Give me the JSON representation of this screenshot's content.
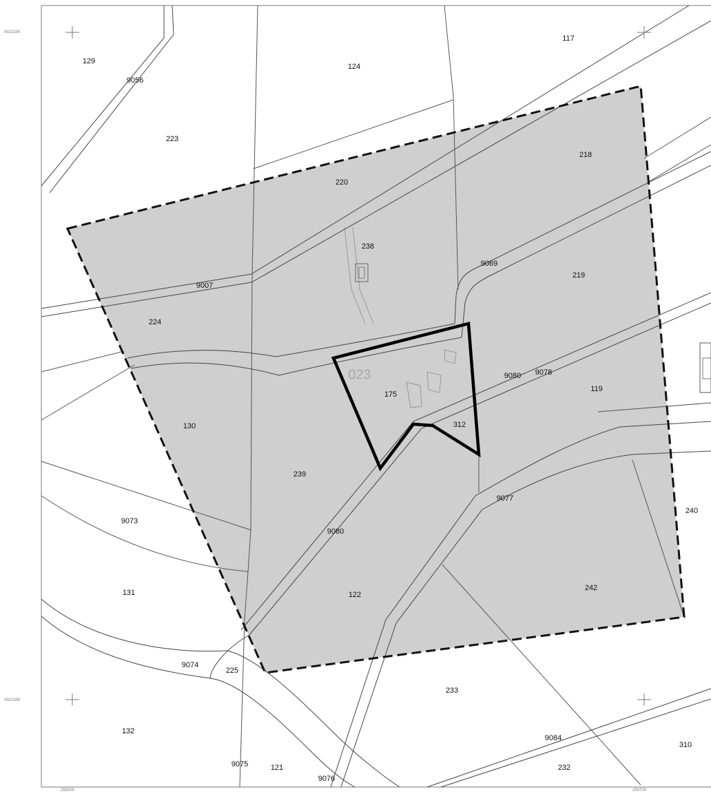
{
  "map": {
    "colors": {
      "background": "#ffffff",
      "study_area_fill": "#cfcfcf",
      "study_area_stroke": "#111111",
      "parcel_stroke": "#555555",
      "highlight_stroke": "#000000"
    },
    "coordinate_labels": {
      "top_left": "4322200",
      "bottom_left": "4321500",
      "bottom_1": "250000",
      "bottom_2": "250700"
    },
    "highlight_label": "023",
    "parcels": [
      "129",
      "9056",
      "124",
      "117",
      "223",
      "220",
      "218",
      "238",
      "9069",
      "219",
      "9007",
      "224",
      "175",
      "312",
      "9080",
      "9078",
      "119",
      "130",
      "239",
      "9073",
      "9077",
      "240",
      "9080",
      "131",
      "122",
      "242",
      "9074",
      "225",
      "233",
      "132",
      "9084",
      "310",
      "9075",
      "121",
      "9076",
      "232"
    ]
  }
}
